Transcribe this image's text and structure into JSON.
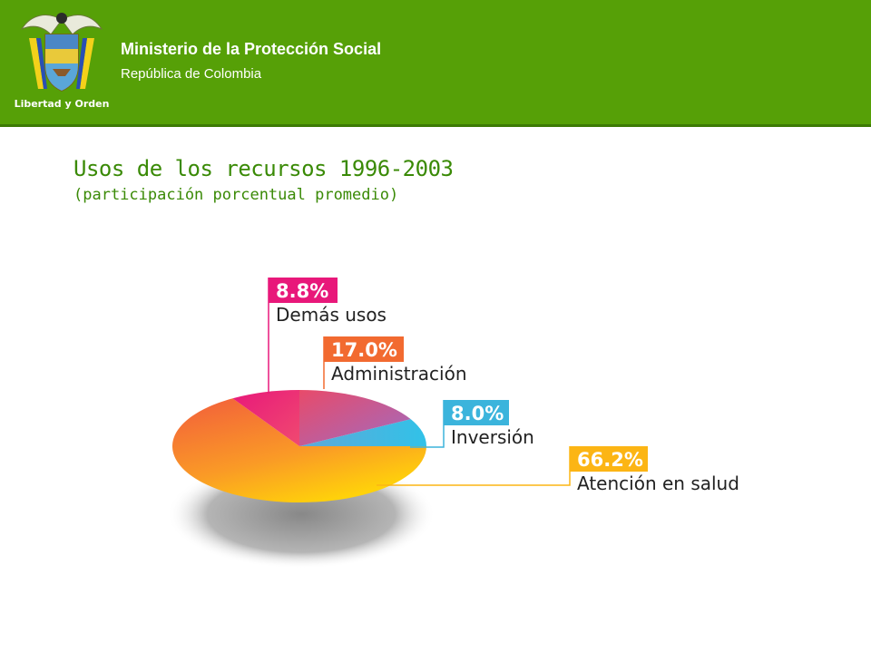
{
  "header": {
    "ministry": "Ministerio de la Protección Social",
    "republic": "República de Colombia",
    "logo_motto": "Libertad y Orden",
    "background_color": "#56a007"
  },
  "title": "Usos de los recursos 1996-2003",
  "subtitle": "(participación porcentual promedio)",
  "chart_data": {
    "type": "pie",
    "title": "Usos de los recursos 1996-2003",
    "subtitle": "(participación porcentual promedio)",
    "slices": [
      {
        "label": "Demás usos",
        "value": 8.8,
        "value_label": "8.8%",
        "color": "#e8187a"
      },
      {
        "label": "Administración",
        "value": 17.0,
        "value_label": "17.0%",
        "color": "#f26a30"
      },
      {
        "label": "Inversión",
        "value": 8.0,
        "value_label": "8.0%",
        "color": "#3bb4dc"
      },
      {
        "label": "Atención en salud",
        "value": 66.2,
        "value_label": "66.2%",
        "color": "#fcb514"
      }
    ],
    "style": "3d-tilted",
    "legend": "callouts"
  }
}
